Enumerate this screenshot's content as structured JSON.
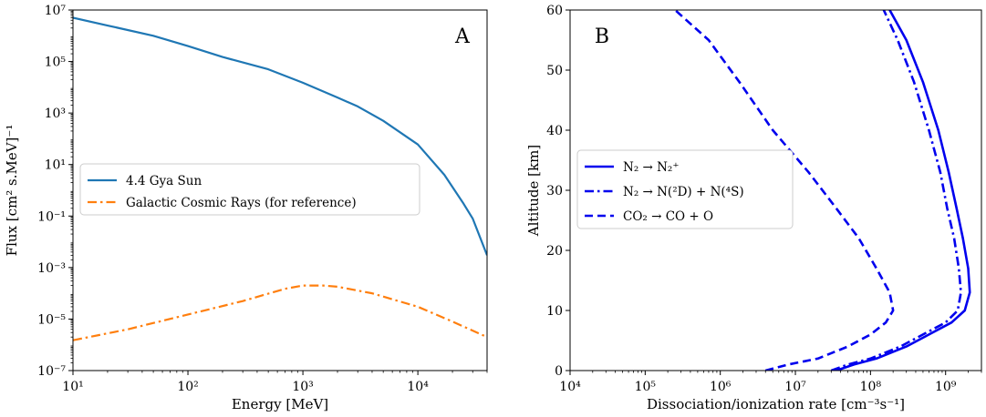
{
  "chart_data": [
    {
      "type": "line",
      "panel_label": "A",
      "xlabel": "Energy [MeV]",
      "ylabel": "Flux [cm² s.MeV]⁻¹",
      "xscale": "log",
      "yscale": "log",
      "xlim": [
        10,
        40000
      ],
      "ylim": [
        1e-07,
        10000000.0
      ],
      "x_ticks": [
        {
          "value": 10,
          "label": "10¹"
        },
        {
          "value": 100,
          "label": "10²"
        },
        {
          "value": 1000,
          "label": "10³"
        },
        {
          "value": 10000,
          "label": "10⁴"
        }
      ],
      "y_ticks": [
        {
          "value": 1e-07,
          "label": "10⁻⁷"
        },
        {
          "value": 1e-05,
          "label": "10⁻⁵"
        },
        {
          "value": 0.001,
          "label": "10⁻³"
        },
        {
          "value": 0.1,
          "label": "10⁻¹"
        },
        {
          "value": 10,
          "label": "10¹"
        },
        {
          "value": 1000,
          "label": "10³"
        },
        {
          "value": 100000,
          "label": "10⁵"
        },
        {
          "value": 10000000,
          "label": "10⁷"
        }
      ],
      "legend_position": "center-left",
      "series": [
        {
          "name": "4.4 Gya Sun",
          "color": "#1f77b4",
          "style": "solid",
          "x": [
            10,
            20,
            50,
            100,
            200,
            500,
            1000,
            2000,
            3000,
            5000,
            10000,
            17000,
            25000,
            30000,
            40000
          ],
          "y": [
            5000000.0,
            2500000.0,
            1000000.0,
            400000.0,
            150000.0,
            50000.0,
            15000.0,
            4000,
            1800,
            500,
            60,
            4,
            0.3,
            0.08,
            0.003
          ]
        },
        {
          "name": "Galactic Cosmic Rays (for reference)",
          "color": "#ff7f0e",
          "style": "dashdot",
          "x": [
            10,
            30,
            100,
            300,
            700,
            1000,
            1500,
            2000,
            4000,
            10000,
            20000,
            40000
          ],
          "y": [
            1.5e-06,
            4e-06,
            1.5e-05,
            5e-05,
            0.00015,
            0.0002,
            0.0002,
            0.00018,
            0.0001,
            3e-05,
            8e-06,
            2e-06
          ]
        }
      ]
    },
    {
      "type": "line",
      "panel_label": "B",
      "xlabel": "Dissociation/ionization rate [cm⁻³s⁻¹]",
      "ylabel": "Altitude [km]",
      "xscale": "log",
      "yscale": "linear",
      "xlim": [
        10000,
        3000000000.0
      ],
      "ylim": [
        0,
        60
      ],
      "x_ticks": [
        {
          "value": 10000,
          "label": "10⁴"
        },
        {
          "value": 100000,
          "label": "10⁵"
        },
        {
          "value": 1000000,
          "label": "10⁶"
        },
        {
          "value": 10000000,
          "label": "10⁷"
        },
        {
          "value": 100000000,
          "label": "10⁸"
        },
        {
          "value": 1000000000,
          "label": "10⁹"
        }
      ],
      "y_ticks": [
        {
          "value": 0,
          "label": "0"
        },
        {
          "value": 10,
          "label": "10"
        },
        {
          "value": 20,
          "label": "20"
        },
        {
          "value": 30,
          "label": "30"
        },
        {
          "value": 40,
          "label": "40"
        },
        {
          "value": 50,
          "label": "50"
        },
        {
          "value": 60,
          "label": "60"
        }
      ],
      "legend_position": "center-left",
      "series": [
        {
          "name": "N₂ → N₂⁺",
          "color": "#0000ee",
          "style": "solid",
          "x": [
            35000000.0,
            60000000.0,
            120000000.0,
            300000000.0,
            600000000.0,
            1200000000.0,
            1800000000.0,
            2100000000.0,
            2000000000.0,
            1700000000.0,
            1400000000.0,
            1100000000.0,
            800000000.0,
            500000000.0,
            300000000.0,
            180000000.0
          ],
          "y": [
            0,
            1,
            2,
            4,
            6,
            8,
            10,
            13,
            17,
            22,
            27,
            33,
            40,
            48,
            55,
            60
          ]
        },
        {
          "name": "N₂ → N(²D) + N(⁴S)",
          "color": "#0000ee",
          "style": "dashdot",
          "x": [
            30000000.0,
            50000000.0,
            100000000.0,
            250000000.0,
            500000000.0,
            1000000000.0,
            1450000000.0,
            1600000000.0,
            1500000000.0,
            1300000000.0,
            1050000000.0,
            850000000.0,
            600000000.0,
            380000000.0,
            230000000.0,
            150000000.0
          ],
          "y": [
            0,
            1,
            2,
            4,
            6,
            8,
            10,
            13,
            17,
            22,
            27,
            33,
            40,
            48,
            55,
            60
          ]
        },
        {
          "name": "CO₂ → CO + O",
          "color": "#0000ee",
          "style": "dashed",
          "x": [
            4000000.0,
            8000000.0,
            20000000.0,
            50000000.0,
            100000000.0,
            160000000.0,
            200000000.0,
            180000000.0,
            120000000.0,
            70000000.0,
            35000000.0,
            15000000.0,
            5000000.0,
            1800000.0,
            700000.0,
            250000.0
          ],
          "y": [
            0,
            1,
            2,
            4,
            6,
            8,
            10,
            13,
            17,
            22,
            27,
            33,
            40,
            48,
            55,
            60
          ]
        }
      ]
    }
  ]
}
